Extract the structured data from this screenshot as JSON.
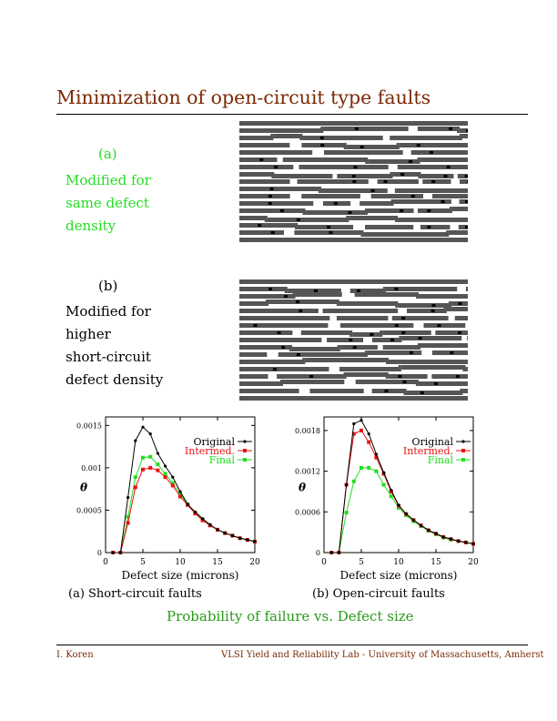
{
  "slide": {
    "title": "Minimization of open-circuit type faults",
    "panel_a": {
      "tag": "(a)",
      "lines": [
        "Modified for",
        "same defect",
        "density"
      ]
    },
    "panel_b": {
      "tag": "(b)",
      "lines": [
        "Modified for",
        "higher",
        "short-circuit",
        "defect density"
      ]
    },
    "caption_a": "(a) Short-circuit faults",
    "caption_b": "(b) Open-circuit faults",
    "subtitle": "Probability of failure vs. Defect size",
    "footer_left": "I. Koren",
    "footer_right": "VLSI Yield and Reliability Lab - University of Massachusetts, Amherst"
  },
  "colors": {
    "title": "#7a2a06",
    "green_text": "#22dd22",
    "subtitle": "#2a9a1a",
    "original": "#000000",
    "intermed": "#ee1111",
    "final": "#22dd22",
    "layout_wire": "#555555"
  },
  "chart_data": [
    {
      "type": "line",
      "xlabel": "Defect size (microns)",
      "ylabel": "θ",
      "xlim": [
        0,
        20
      ],
      "ylim": [
        0,
        0.0016
      ],
      "xticks": [
        "0",
        "5",
        "10",
        "15",
        "20"
      ],
      "yticks": [
        "0",
        "0.0005",
        "0.001",
        "0.0015"
      ],
      "legend_position": "top-right",
      "x": [
        1,
        2,
        3,
        4,
        5,
        6,
        7,
        8,
        9,
        10,
        11,
        12,
        13,
        14,
        15,
        16,
        17,
        18,
        19,
        20
      ],
      "series": [
        {
          "name": "Original",
          "color": "#000000",
          "values": [
            0,
            0,
            0.00065,
            0.00132,
            0.00148,
            0.0014,
            0.00117,
            0.00102,
            0.00089,
            0.00072,
            0.00057,
            0.00048,
            0.0004,
            0.00033,
            0.00027,
            0.00023,
            0.0002,
            0.00017,
            0.00015,
            0.00013
          ]
        },
        {
          "name": "Intermed.",
          "color": "#ee1111",
          "values": [
            0,
            0,
            0.00035,
            0.00077,
            0.00098,
            0.001,
            0.00097,
            0.00089,
            0.00079,
            0.00066,
            0.00056,
            0.00046,
            0.00038,
            0.00032,
            0.00027,
            0.00023,
            0.0002,
            0.00017,
            0.00015,
            0.00013
          ]
        },
        {
          "name": "Final",
          "color": "#22dd22",
          "values": [
            0,
            0,
            0.00042,
            0.00089,
            0.00112,
            0.00113,
            0.00104,
            0.00093,
            0.00082,
            0.00069,
            0.00057,
            0.00047,
            0.00039,
            0.00032,
            0.00027,
            0.00023,
            0.0002,
            0.00017,
            0.00015,
            0.00013
          ]
        }
      ]
    },
    {
      "type": "line",
      "xlabel": "Defect size (microns)",
      "ylabel": "θ",
      "xlim": [
        0,
        20
      ],
      "ylim": [
        0,
        0.002
      ],
      "xticks": [
        "0",
        "5",
        "10",
        "15",
        "20"
      ],
      "yticks": [
        "0",
        "0.0006",
        "0.0012",
        "0.0018"
      ],
      "legend_position": "top-right",
      "x": [
        1,
        2,
        3,
        4,
        5,
        6,
        7,
        8,
        9,
        10,
        11,
        12,
        13,
        14,
        15,
        16,
        17,
        18,
        19,
        20
      ],
      "series": [
        {
          "name": "Original",
          "color": "#000000",
          "values": [
            0,
            0,
            0.001,
            0.0019,
            0.00195,
            0.00175,
            0.00145,
            0.00118,
            0.00092,
            0.0007,
            0.00057,
            0.00048,
            0.0004,
            0.00033,
            0.00028,
            0.00023,
            0.0002,
            0.00017,
            0.00015,
            0.00013
          ]
        },
        {
          "name": "Intermed.",
          "color": "#ee1111",
          "values": [
            0,
            0,
            0.001,
            0.00175,
            0.0018,
            0.00163,
            0.0014,
            0.00116,
            0.0009,
            0.00069,
            0.00057,
            0.00048,
            0.0004,
            0.00033,
            0.00028,
            0.00023,
            0.0002,
            0.00017,
            0.00015,
            0.00013
          ]
        },
        {
          "name": "Final",
          "color": "#22dd22",
          "values": [
            0,
            0,
            0.00059,
            0.00105,
            0.00125,
            0.00125,
            0.0012,
            0.001,
            0.00083,
            0.00066,
            0.00055,
            0.00046,
            0.00039,
            0.00032,
            0.00027,
            0.00022,
            0.00019,
            0.00017,
            0.00015,
            0.00013
          ]
        }
      ]
    }
  ]
}
